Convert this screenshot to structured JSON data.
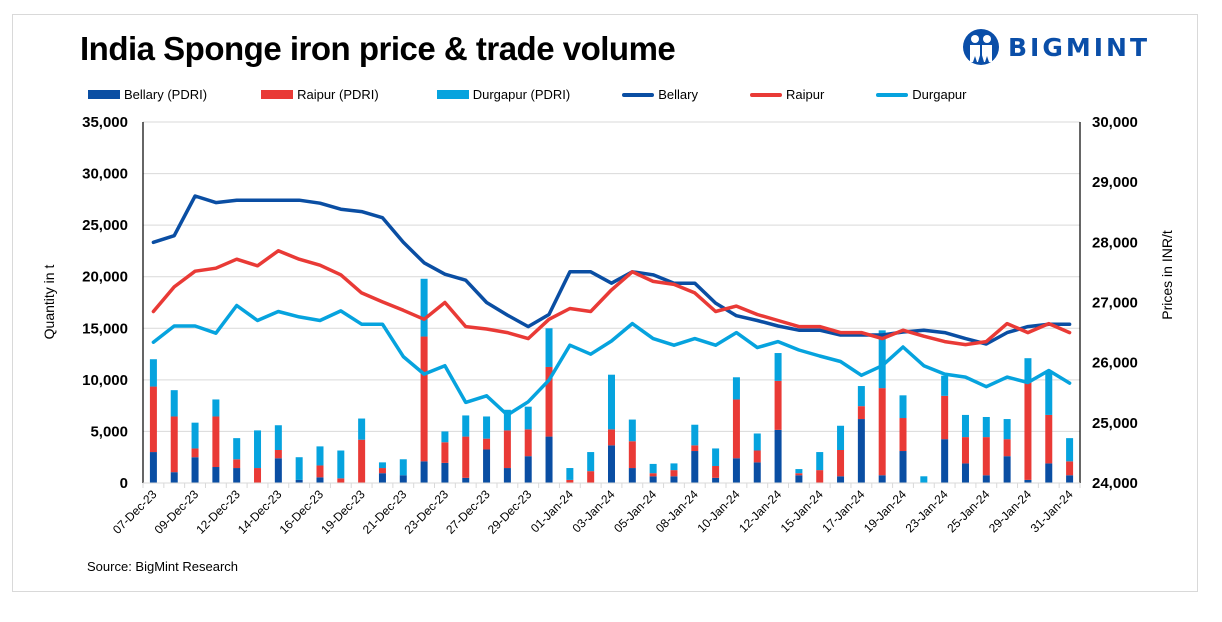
{
  "header": {
    "title": "India Sponge iron price & trade volume",
    "logo_text": "BIGMINT"
  },
  "source": "Source: BigMint Research",
  "colors": {
    "bellary": "#0a4ea3",
    "raipur": "#e93a36",
    "durgapur": "#06a3de",
    "grid": "#d9d9d9",
    "logo": "#0a4ea8"
  },
  "legend": [
    {
      "label": "Bellary (PDRI)",
      "kind": "bar",
      "series": "bellary"
    },
    {
      "label": "Raipur (PDRI)",
      "kind": "bar",
      "series": "raipur"
    },
    {
      "label": "Durgapur (PDRI)",
      "kind": "bar",
      "series": "durgapur"
    },
    {
      "label": "Bellary",
      "kind": "line",
      "series": "bellary"
    },
    {
      "label": "Raipur",
      "kind": "line",
      "series": "raipur"
    },
    {
      "label": "Durgapur",
      "kind": "line",
      "series": "durgapur"
    }
  ],
  "chart_data": {
    "type": "bar",
    "subtype": "stacked bar + line (dual axis)",
    "title": "India Sponge iron price & trade volume",
    "ylabel": "Quantity in t",
    "y2label": "Prices in INR/t",
    "ylim": [
      0,
      35000
    ],
    "y2lim": [
      24000,
      30000
    ],
    "yticks": [
      "0",
      "5,000",
      "10,000",
      "15,000",
      "20,000",
      "25,000",
      "30,000",
      "35,000"
    ],
    "y2ticks": [
      "24,000",
      "25,000",
      "26,000",
      "27,000",
      "28,000",
      "29,000",
      "30,000"
    ],
    "grid": true,
    "legend_position": "top",
    "categories": [
      "07-Dec-23",
      "08-Dec-23",
      "09-Dec-23",
      "11-Dec-23",
      "12-Dec-23",
      "13-Dec-23",
      "14-Dec-23",
      "15-Dec-23",
      "16-Dec-23",
      "18-Dec-23",
      "19-Dec-23",
      "20-Dec-23",
      "21-Dec-23",
      "22-Dec-23",
      "23-Dec-23",
      "26-Dec-23",
      "27-Dec-23",
      "28-Dec-23",
      "29-Dec-23",
      "30-Dec-23",
      "01-Jan-24",
      "02-Jan-24",
      "03-Jan-24",
      "04-Jan-24",
      "05-Jan-24",
      "06-Jan-24",
      "08-Jan-24",
      "09-Jan-24",
      "10-Jan-24",
      "11-Jan-24",
      "12-Jan-24",
      "13-Jan-24",
      "15-Jan-24",
      "16-Jan-24",
      "17-Jan-24",
      "18-Jan-24",
      "19-Jan-24",
      "20-Jan-24",
      "23-Jan-24",
      "24-Jan-24",
      "25-Jan-24",
      "27-Jan-24",
      "29-Jan-24",
      "30-Jan-24",
      "31-Jan-24"
    ],
    "tick_labels": [
      "07-Dec-23",
      "09-Dec-23",
      "12-Dec-23",
      "14-Dec-23",
      "16-Dec-23",
      "19-Dec-23",
      "21-Dec-23",
      "23-Dec-23",
      "27-Dec-23",
      "29-Dec-23",
      "01-Jan-24",
      "03-Jan-24",
      "05-Jan-24",
      "08-Jan-24",
      "10-Jan-24",
      "12-Jan-24",
      "15-Jan-24",
      "17-Jan-24",
      "19-Jan-24",
      "23-Jan-24",
      "25-Jan-24",
      "29-Jan-24",
      "31-Jan-24"
    ],
    "series": [
      {
        "name": "Bellary (PDRI)",
        "kind": "bar",
        "axis": "left",
        "color_key": "bellary",
        "values": [
          3000,
          1050,
          2500,
          1550,
          1450,
          0,
          2400,
          300,
          550,
          0,
          0,
          950,
          750,
          2100,
          1950,
          500,
          3250,
          1450,
          2600,
          4500,
          0,
          0,
          3650,
          1450,
          650,
          650,
          3100,
          500,
          2400,
          2000,
          5150,
          750,
          0,
          650,
          6200,
          750,
          3100,
          0,
          4250,
          1900,
          750,
          2600,
          300,
          1900,
          750
        ]
      },
      {
        "name": "Raipur (PDRI)",
        "kind": "bar",
        "axis": "left",
        "color_key": "raipur",
        "values": [
          6350,
          5400,
          850,
          4900,
          850,
          1450,
          800,
          0,
          1150,
          450,
          4200,
          500,
          0,
          12100,
          2000,
          4000,
          1050,
          3650,
          2600,
          6750,
          300,
          1150,
          1550,
          2600,
          300,
          600,
          550,
          1150,
          5700,
          1150,
          4750,
          200,
          1250,
          2550,
          1250,
          8450,
          3200,
          0,
          4200,
          2550,
          3700,
          1650,
          9500,
          4700,
          1350
        ]
      },
      {
        "name": "Durgapur (PDRI)",
        "kind": "bar",
        "axis": "left",
        "color_key": "durgapur",
        "values": [
          2650,
          2550,
          2500,
          1650,
          2050,
          3650,
          2400,
          2200,
          1850,
          2700,
          2050,
          550,
          1550,
          5600,
          1050,
          2050,
          2150,
          2000,
          2200,
          3750,
          1150,
          1850,
          5300,
          2100,
          900,
          650,
          2000,
          1700,
          2150,
          1650,
          2700,
          400,
          1750,
          2350,
          1950,
          5600,
          2200,
          650,
          1950,
          2150,
          1950,
          1950,
          2300,
          4200,
          2250
        ]
      },
      {
        "name": "Bellary",
        "kind": "line",
        "axis": "right",
        "color_key": "bellary",
        "values": [
          28000,
          28110,
          28770,
          28660,
          28700,
          28700,
          28700,
          28700,
          28650,
          28550,
          28510,
          28410,
          28000,
          27660,
          27470,
          27370,
          27000,
          26790,
          26600,
          26800,
          27510,
          27510,
          27320,
          27510,
          27460,
          27320,
          27320,
          26990,
          26780,
          26700,
          26610,
          26540,
          26540,
          26460,
          26460,
          26460,
          26510,
          26540,
          26500,
          26400,
          26310,
          26500,
          26600,
          26640,
          26640
        ]
      },
      {
        "name": "Raipur",
        "kind": "line",
        "axis": "right",
        "color_key": "raipur",
        "values": [
          26850,
          27260,
          27520,
          27570,
          27720,
          27610,
          27860,
          27720,
          27620,
          27460,
          27160,
          27010,
          26870,
          26720,
          27000,
          26600,
          26560,
          26500,
          26400,
          26720,
          26900,
          26850,
          27210,
          27510,
          27350,
          27300,
          27160,
          26850,
          26940,
          26800,
          26700,
          26600,
          26600,
          26500,
          26500,
          26400,
          26540,
          26440,
          26350,
          26300,
          26350,
          26650,
          26500,
          26650,
          26500
        ]
      },
      {
        "name": "Durgapur",
        "kind": "line",
        "axis": "right",
        "color_key": "durgapur",
        "values": [
          26340,
          26610,
          26610,
          26490,
          26950,
          26700,
          26850,
          26760,
          26700,
          26860,
          26640,
          26640,
          26100,
          25810,
          25950,
          25340,
          25450,
          25130,
          25350,
          25710,
          26290,
          26140,
          26360,
          26650,
          26400,
          26290,
          26400,
          26290,
          26500,
          26250,
          26350,
          26210,
          26110,
          26020,
          25790,
          25950,
          26260,
          25950,
          25810,
          25760,
          25600,
          25760,
          25670,
          25870,
          25660
        ]
      }
    ]
  }
}
